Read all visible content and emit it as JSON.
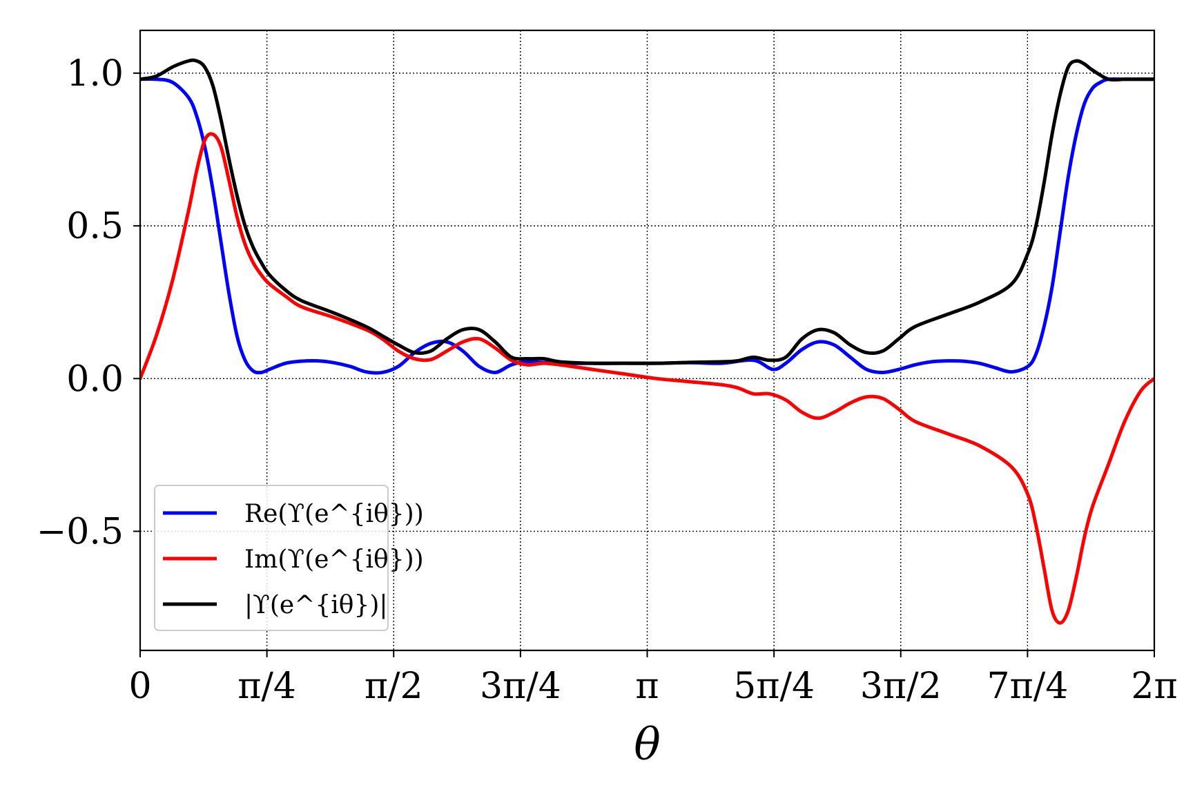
{
  "chart_data": {
    "type": "line",
    "title": "",
    "xlabel": "θ",
    "ylabel": "",
    "xlim": [
      0,
      6.2832
    ],
    "ylim": [
      -0.89,
      1.14
    ],
    "grid": true,
    "legend_position": "lower-left",
    "x_ticks": [
      {
        "value": 0,
        "label": "0"
      },
      {
        "value": 0.7854,
        "label": "π/4"
      },
      {
        "value": 1.5708,
        "label": "π/2"
      },
      {
        "value": 2.3562,
        "label": "3π/4"
      },
      {
        "value": 3.1416,
        "label": "π"
      },
      {
        "value": 3.927,
        "label": "5π/4"
      },
      {
        "value": 4.7124,
        "label": "3π/2"
      },
      {
        "value": 5.4978,
        "label": "7π/4"
      },
      {
        "value": 6.2832,
        "label": "2π"
      }
    ],
    "y_ticks": [
      {
        "value": 1.0,
        "label": "1.0"
      },
      {
        "value": 0.5,
        "label": "0.5"
      },
      {
        "value": 0.0,
        "label": "0.0"
      },
      {
        "value": -0.5,
        "label": "−0.5"
      }
    ],
    "series": [
      {
        "name": "Re(ϒ(e^{iθ}))",
        "color": "#0000ff",
        "x": [
          0,
          0.1,
          0.2,
          0.3,
          0.35,
          0.4,
          0.45,
          0.5,
          0.55,
          0.6,
          0.65,
          0.7,
          0.75,
          0.8,
          0.9,
          1.0,
          1.1,
          1.2,
          1.3,
          1.4,
          1.5,
          1.6,
          1.7,
          1.8,
          1.9,
          2.0,
          2.1,
          2.2,
          2.3,
          2.4,
          2.6,
          2.8,
          3.0,
          3.2,
          3.4,
          3.6,
          3.8,
          3.92,
          4.0,
          4.1,
          4.2,
          4.3,
          4.4,
          4.5,
          4.6,
          4.7,
          4.8,
          4.9,
          5.0,
          5.1,
          5.2,
          5.3,
          5.4,
          5.5,
          5.55,
          5.6,
          5.65,
          5.7,
          5.75,
          5.8,
          5.85,
          5.9,
          5.95,
          6.0,
          6.1,
          6.2,
          6.2832
        ],
        "y": [
          0.98,
          0.98,
          0.97,
          0.92,
          0.86,
          0.76,
          0.62,
          0.45,
          0.28,
          0.14,
          0.06,
          0.025,
          0.02,
          0.03,
          0.05,
          0.057,
          0.058,
          0.052,
          0.04,
          0.022,
          0.02,
          0.04,
          0.085,
          0.115,
          0.12,
          0.09,
          0.04,
          0.02,
          0.045,
          0.055,
          0.05,
          0.05,
          0.05,
          0.05,
          0.052,
          0.05,
          0.06,
          0.03,
          0.05,
          0.095,
          0.12,
          0.11,
          0.07,
          0.03,
          0.02,
          0.03,
          0.045,
          0.055,
          0.058,
          0.057,
          0.05,
          0.035,
          0.022,
          0.04,
          0.08,
          0.17,
          0.3,
          0.48,
          0.66,
          0.8,
          0.9,
          0.95,
          0.97,
          0.98,
          0.98,
          0.98,
          0.98
        ]
      },
      {
        "name": "Im(ϒ(e^{iθ}))",
        "color": "#ff0000",
        "x": [
          0,
          0.1,
          0.2,
          0.3,
          0.35,
          0.4,
          0.45,
          0.5,
          0.55,
          0.6,
          0.65,
          0.7,
          0.75,
          0.8,
          0.9,
          1.0,
          1.2,
          1.4,
          1.5,
          1.6,
          1.7,
          1.8,
          1.9,
          2.0,
          2.1,
          2.2,
          2.3,
          2.4,
          2.5,
          2.6,
          2.8,
          3.0,
          3.2,
          3.4,
          3.6,
          3.7,
          3.8,
          3.9,
          4.0,
          4.1,
          4.2,
          4.3,
          4.4,
          4.5,
          4.6,
          4.7,
          4.8,
          5.0,
          5.2,
          5.4,
          5.5,
          5.55,
          5.6,
          5.65,
          5.7,
          5.75,
          5.8,
          5.85,
          5.9,
          6.0,
          6.1,
          6.2,
          6.2832
        ],
        "y": [
          0.0,
          0.14,
          0.32,
          0.55,
          0.68,
          0.78,
          0.8,
          0.76,
          0.65,
          0.53,
          0.44,
          0.38,
          0.34,
          0.31,
          0.27,
          0.235,
          0.2,
          0.16,
          0.13,
          0.09,
          0.065,
          0.062,
          0.09,
          0.12,
          0.13,
          0.1,
          0.06,
          0.045,
          0.05,
          0.045,
          0.03,
          0.015,
          0.0,
          -0.01,
          -0.02,
          -0.03,
          -0.05,
          -0.05,
          -0.07,
          -0.11,
          -0.13,
          -0.11,
          -0.08,
          -0.06,
          -0.065,
          -0.1,
          -0.14,
          -0.18,
          -0.22,
          -0.29,
          -0.38,
          -0.48,
          -0.62,
          -0.76,
          -0.8,
          -0.76,
          -0.65,
          -0.52,
          -0.42,
          -0.28,
          -0.14,
          -0.04,
          0.0
        ]
      },
      {
        "name": "|ϒ(e^{iθ})|",
        "color": "#000000",
        "x": [
          0,
          0.1,
          0.2,
          0.3,
          0.35,
          0.4,
          0.45,
          0.5,
          0.55,
          0.6,
          0.65,
          0.7,
          0.75,
          0.8,
          0.9,
          1.0,
          1.2,
          1.4,
          1.5,
          1.6,
          1.7,
          1.8,
          1.9,
          2.0,
          2.1,
          2.2,
          2.3,
          2.4,
          2.5,
          2.6,
          2.8,
          3.0,
          3.2,
          3.4,
          3.6,
          3.7,
          3.8,
          3.9,
          4.0,
          4.1,
          4.2,
          4.3,
          4.4,
          4.5,
          4.6,
          4.7,
          4.8,
          5.0,
          5.2,
          5.4,
          5.5,
          5.55,
          5.6,
          5.65,
          5.7,
          5.75,
          5.8,
          5.85,
          5.9,
          6.0,
          6.1,
          6.2,
          6.2832
        ],
        "y": [
          0.98,
          0.99,
          1.02,
          1.04,
          1.04,
          1.02,
          0.96,
          0.85,
          0.72,
          0.6,
          0.5,
          0.43,
          0.38,
          0.34,
          0.29,
          0.255,
          0.215,
          0.17,
          0.14,
          0.11,
          0.085,
          0.09,
          0.13,
          0.16,
          0.16,
          0.12,
          0.07,
          0.065,
          0.065,
          0.055,
          0.05,
          0.05,
          0.05,
          0.053,
          0.055,
          0.058,
          0.07,
          0.06,
          0.07,
          0.13,
          0.16,
          0.15,
          0.11,
          0.085,
          0.09,
          0.13,
          0.17,
          0.21,
          0.25,
          0.31,
          0.41,
          0.5,
          0.64,
          0.8,
          0.93,
          1.02,
          1.04,
          1.03,
          1.01,
          0.98,
          0.98,
          0.98,
          0.98
        ]
      }
    ]
  }
}
